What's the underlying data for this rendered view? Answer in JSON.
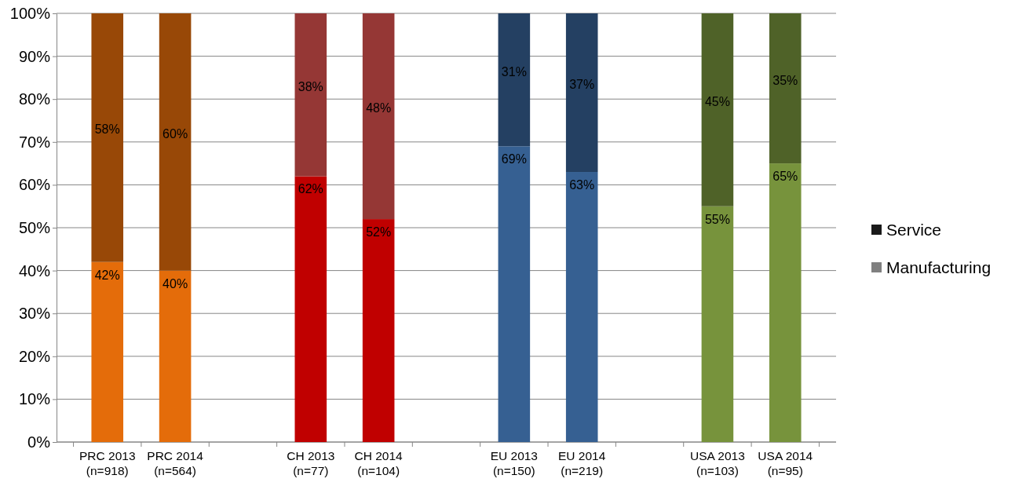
{
  "chart_data": {
    "type": "bar",
    "stacked": true,
    "categories": [
      "PRC 2013\n(n=918)",
      "PRC 2014\n(n=564)",
      null,
      "CH 2013\n(n=77)",
      "CH 2014\n(n=104)",
      null,
      "EU 2013\n(n=150)",
      "EU 2014\n(n=219)",
      null,
      "USA 2013\n(n=103)",
      "USA 2014\n(n=95)"
    ],
    "series": [
      {
        "name": "Manufacturing",
        "color": "#808080",
        "colors": [
          "#e46c0a",
          "#e46c0a",
          null,
          "#c00000",
          "#c00000",
          null,
          "#366092",
          "#366092",
          null,
          "#77933c",
          "#77933c"
        ],
        "values": [
          42,
          40,
          null,
          62,
          52,
          null,
          69,
          63,
          null,
          55,
          65
        ],
        "value_labels": [
          "42%",
          "40%",
          null,
          "62%",
          "52%",
          null,
          "69%",
          "63%",
          null,
          "55%",
          "65%"
        ]
      },
      {
        "name": "Service",
        "color": "#1a1a1a",
        "colors": [
          "#984807",
          "#984807",
          null,
          "#953735",
          "#953735",
          null,
          "#244062",
          "#244062",
          null,
          "#4f6228",
          "#4f6228"
        ],
        "values": [
          58,
          60,
          null,
          38,
          48,
          null,
          31,
          37,
          null,
          45,
          35
        ],
        "value_labels": [
          "58%",
          "60%",
          null,
          "38%",
          "48%",
          null,
          "31%",
          "37%",
          null,
          "45%",
          "35%"
        ]
      }
    ],
    "ylim": [
      0,
      100
    ],
    "yticks": [
      {
        "value": 0,
        "label": "0%"
      },
      {
        "value": 10,
        "label": "10%"
      },
      {
        "value": 20,
        "label": "20%"
      },
      {
        "value": 30,
        "label": "30%"
      },
      {
        "value": 40,
        "label": "40%"
      },
      {
        "value": 50,
        "label": "50%"
      },
      {
        "value": 60,
        "label": "60%"
      },
      {
        "value": 70,
        "label": "70%"
      },
      {
        "value": 80,
        "label": "80%"
      },
      {
        "value": 90,
        "label": "90%"
      },
      {
        "value": 100,
        "label": "100%"
      }
    ],
    "grid": "y",
    "legend": "right"
  }
}
